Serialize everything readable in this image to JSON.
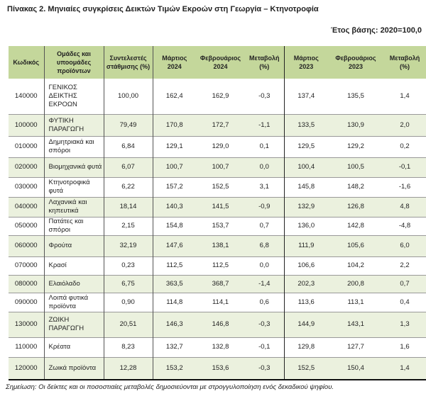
{
  "title": "Πίνακας 2. Μηνιαίες συγκρίσεις Δεικτών Τιμών Εκροών στη Γεωργία – Κτηνοτροφία",
  "base_year": "Έτος βάσης: 2020=100,0",
  "headers": [
    "Κωδικός",
    "Ομάδες και υποομάδες προϊόντων",
    "Συντελεστές στάθμισης (%)",
    "Μάρτιος 2024",
    "Φεβρουάριος 2024",
    "Μεταβολή (%)",
    "Μάρτιος 2023",
    "Φεβρουάριος 2023",
    "Μεταβολή (%)"
  ],
  "rows": [
    [
      "140000",
      "ΓΕΝΙΚΟΣ ΔΕΙΚΤΗΣ ΕΚΡΟΩΝ",
      "100,00",
      "162,4",
      "162,9",
      "-0,3",
      "137,4",
      "135,5",
      "1,4"
    ],
    [
      "100000",
      "ΦΥΤΙΚΗ ΠΑΡΑΓΩΓΗ",
      "79,49",
      "170,8",
      "172,7",
      "-1,1",
      "133,5",
      "130,9",
      "2,0"
    ],
    [
      "010000",
      "Δημητριακά και σπόροι",
      "6,84",
      "129,1",
      "129,0",
      "0,1",
      "129,5",
      "129,2",
      "0,2"
    ],
    [
      "020000",
      "Βιομηχανικά φυτά",
      "6,07",
      "100,7",
      "100,7",
      "0,0",
      "100,4",
      "100,5",
      "-0,1"
    ],
    [
      "030000",
      "Κτηνοτροφικά φυτά",
      "6,22",
      "157,2",
      "152,5",
      "3,1",
      "145,8",
      "148,2",
      "-1,6"
    ],
    [
      "040000",
      "Λαχανικά και κηπευτικά",
      "18,14",
      "140,3",
      "141,5",
      "-0,9",
      "132,9",
      "126,8",
      "4,8"
    ],
    [
      "050000",
      "Πατάτες και σπόροι",
      "2,15",
      "154,8",
      "153,7",
      "0,7",
      "136,0",
      "142,8",
      "-4,8"
    ],
    [
      "060000",
      "Φρούτα",
      "32,19",
      "147,6",
      "138,1",
      "6,8",
      "111,9",
      "105,6",
      "6,0"
    ],
    [
      "070000",
      "Κρασί",
      "0,23",
      "112,5",
      "112,5",
      "0,0",
      "106,6",
      "104,2",
      "2,2"
    ],
    [
      "080000",
      "Ελαιόλαδο",
      "6,75",
      "363,5",
      "368,7",
      "-1,4",
      "202,3",
      "200,8",
      "0,7"
    ],
    [
      "090000",
      "Λοιπά φυτικά προϊόντα",
      "0,90",
      "114,8",
      "114,1",
      "0,6",
      "113,6",
      "113,1",
      "0,4"
    ],
    [
      "130000",
      "ΖΩΙΚΗ ΠΑΡΑΓΩΓΗ",
      "20,51",
      "146,3",
      "146,8",
      "-0,3",
      "144,9",
      "143,1",
      "1,3"
    ],
    [
      "110000",
      "Κρέατα",
      "8,23",
      "132,7",
      "132,8",
      "-0,1",
      "129,8",
      "127,7",
      "1,6"
    ],
    [
      "120000",
      "Ζωικά προϊόντα",
      "12,28",
      "153,2",
      "153,6",
      "-0,3",
      "152,5",
      "150,4",
      "1,4"
    ]
  ],
  "note": "Σημείωση: Οι δείκτες και οι ποσοστιαίες μεταβολές δημοσιεύονται με στρογγυλοποίηση ενός δεκαδικού ψηφίου.",
  "colors": {
    "header": "#c4d79b",
    "alt_row": "#ebf1de"
  }
}
